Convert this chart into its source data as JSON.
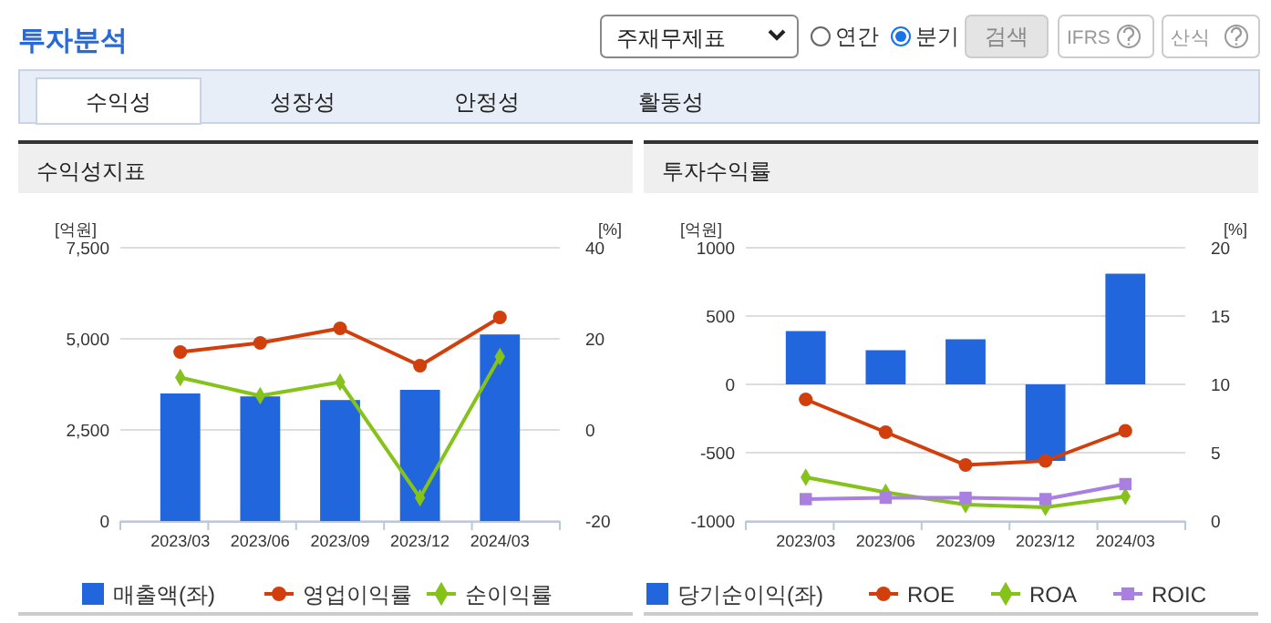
{
  "chart_data": [
    {
      "type": "other",
      "title": "투자분석",
      "annotations": [
        "주재무제표",
        "연간",
        "분기",
        "검색",
        "IFRS",
        "산식",
        "수익성",
        "성장성",
        "안정성",
        "활동성"
      ]
    },
    {
      "type": "bar",
      "title": "수익성지표",
      "ylabel": "[억원]",
      "y2label": "[%]",
      "categories": [
        "2023/03",
        "2023/06",
        "2023/09",
        "2023/12",
        "2024/03"
      ],
      "series": [
        {
          "name": "매출액(좌)",
          "type": "bar",
          "color": "#2266dd",
          "values": [
            3500,
            3420,
            3320,
            3600,
            5120
          ]
        },
        {
          "name": "영업이익률",
          "type": "line",
          "axis": "y2",
          "marker": "circle",
          "color": "#d13f0c",
          "values": [
            17.1,
            19.1,
            22.3,
            14.1,
            24.7
          ]
        },
        {
          "name": "순이익률",
          "type": "line",
          "axis": "y2",
          "marker": "diamond",
          "color": "#85c21a",
          "values": [
            11.5,
            7.5,
            10.5,
            -14.9,
            16.1
          ]
        }
      ],
      "ylim": [
        0,
        7500
      ],
      "yticks": [
        0,
        {
          "value": 2500,
          "label": "2,500"
        },
        {
          "value": 5000,
          "label": "5,000"
        },
        {
          "value": 7500,
          "label": "7,500"
        }
      ],
      "y2lim": [
        -20,
        40
      ],
      "y2ticks": [
        -20,
        0,
        20,
        40
      ],
      "grid": "y",
      "legend": "bottom"
    },
    {
      "type": "bar",
      "title": "투자수익률",
      "ylabel": "[억원]",
      "y2label": "[%]",
      "categories": [
        "2023/03",
        "2023/06",
        "2023/09",
        "2023/12",
        "2024/03"
      ],
      "series": [
        {
          "name": "당기순이익(좌)",
          "type": "bar",
          "color": "#2266dd",
          "values": [
            390,
            250,
            330,
            -560,
            810
          ]
        },
        {
          "name": "ROE",
          "type": "line",
          "axis": "y2",
          "marker": "circle",
          "color": "#d13f0c",
          "values": [
            8.9,
            6.5,
            4.1,
            4.4,
            6.6
          ]
        },
        {
          "name": "ROA",
          "type": "line",
          "axis": "y2",
          "marker": "diamond",
          "color": "#85c21a",
          "values": [
            3.2,
            2.1,
            1.2,
            1.0,
            1.8
          ]
        },
        {
          "name": "ROIC",
          "type": "line",
          "axis": "y2",
          "marker": "square",
          "color": "#a97fe0",
          "values": [
            1.6,
            1.7,
            1.7,
            1.6,
            2.7
          ]
        }
      ],
      "ylim": [
        -1000,
        1000
      ],
      "yticks": [
        -1000,
        -500,
        0,
        500,
        1000
      ],
      "y2lim": [
        0,
        20
      ],
      "y2ticks": [
        0,
        5,
        10,
        15,
        20
      ],
      "grid": "y",
      "legend": "bottom"
    }
  ]
}
